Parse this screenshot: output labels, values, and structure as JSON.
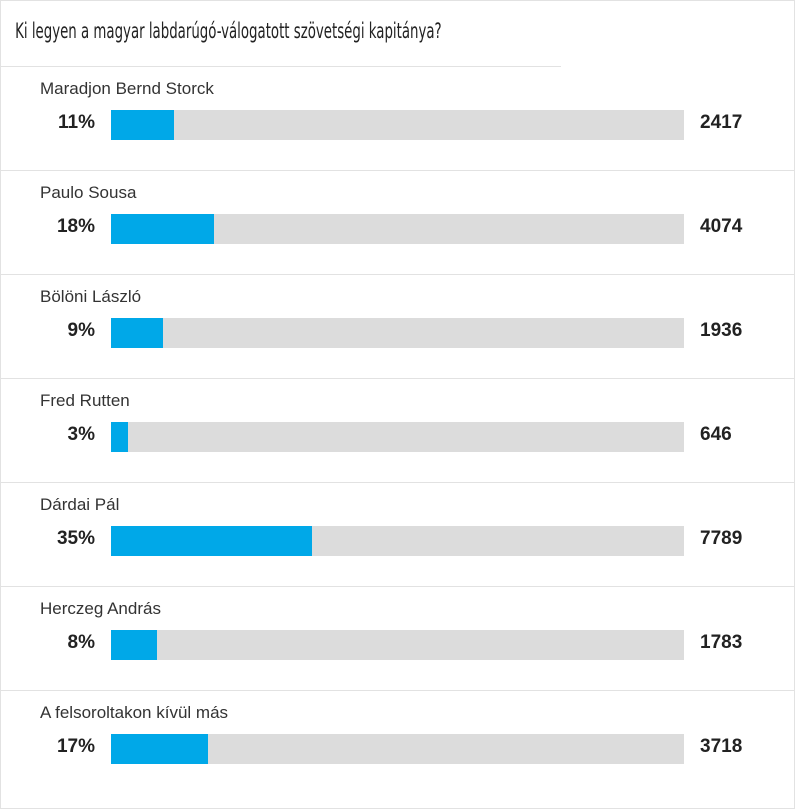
{
  "poll": {
    "title": "Ki legyen a magyar labdarúgó-válogatott szövetségi kapitánya?",
    "colors": {
      "bar_fill": "#00a8e8",
      "bar_track": "#dcdcdc"
    },
    "options": [
      {
        "label": "Maradjon Bernd Storck",
        "percent_text": "11%",
        "percent": 11,
        "votes": "2417"
      },
      {
        "label": "Paulo Sousa",
        "percent_text": "18%",
        "percent": 18,
        "votes": "4074"
      },
      {
        "label": "Bölöni László",
        "percent_text": "9%",
        "percent": 9,
        "votes": "1936"
      },
      {
        "label": "Fred Rutten",
        "percent_text": "3%",
        "percent": 3,
        "votes": "646"
      },
      {
        "label": "Dárdai Pál",
        "percent_text": "35%",
        "percent": 35,
        "votes": "7789"
      },
      {
        "label": "Herczeg András",
        "percent_text": "8%",
        "percent": 8,
        "votes": "1783"
      },
      {
        "label": "A felsoroltakon kívül más",
        "percent_text": "17%",
        "percent": 17,
        "votes": "3718"
      }
    ]
  }
}
